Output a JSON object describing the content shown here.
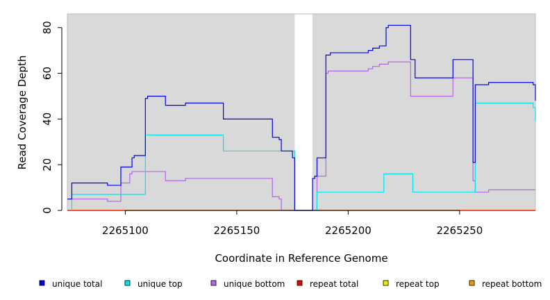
{
  "chart_data": {
    "type": "line",
    "title": "",
    "xlabel": "Coordinate in Reference Genome",
    "ylabel": "Read Coverage Depth",
    "xlim": [
      2265074,
      2265284
    ],
    "ylim": [
      0,
      86
    ],
    "xticks": [
      2265100,
      2265150,
      2265200,
      2265250
    ],
    "yticks": [
      0,
      20,
      40,
      60,
      80
    ],
    "background_color": "#d9d9d9",
    "gap_region": [
      2265176,
      2265184
    ],
    "legend_position": "bottom",
    "series": [
      {
        "name": "unique total",
        "color": "#0000ee",
        "points": [
          [
            2265074,
            5
          ],
          [
            2265076,
            5
          ],
          [
            2265076,
            12
          ],
          [
            2265092,
            12
          ],
          [
            2265092,
            11
          ],
          [
            2265098,
            11
          ],
          [
            2265098,
            19
          ],
          [
            2265103,
            19
          ],
          [
            2265103,
            23
          ],
          [
            2265104,
            23
          ],
          [
            2265104,
            24
          ],
          [
            2265109,
            24
          ],
          [
            2265109,
            49
          ],
          [
            2265110,
            49
          ],
          [
            2265110,
            50
          ],
          [
            2265118,
            50
          ],
          [
            2265118,
            46
          ],
          [
            2265127,
            46
          ],
          [
            2265127,
            47
          ],
          [
            2265144,
            47
          ],
          [
            2265144,
            40
          ],
          [
            2265166,
            40
          ],
          [
            2265166,
            32
          ],
          [
            2265169,
            32
          ],
          [
            2265169,
            31
          ],
          [
            2265170,
            31
          ],
          [
            2265170,
            26
          ],
          [
            2265175,
            26
          ],
          [
            2265175,
            23
          ],
          [
            2265176,
            23
          ],
          [
            2265176,
            0
          ],
          [
            2265184,
            0
          ],
          [
            2265184,
            14
          ],
          [
            2265185,
            14
          ],
          [
            2265185,
            15
          ],
          [
            2265186,
            15
          ],
          [
            2265186,
            23
          ],
          [
            2265190,
            23
          ],
          [
            2265190,
            68
          ],
          [
            2265192,
            68
          ],
          [
            2265192,
            69
          ],
          [
            2265209,
            69
          ],
          [
            2265209,
            70
          ],
          [
            2265211,
            70
          ],
          [
            2265211,
            71
          ],
          [
            2265214,
            71
          ],
          [
            2265214,
            72
          ],
          [
            2265217,
            72
          ],
          [
            2265217,
            80
          ],
          [
            2265218,
            80
          ],
          [
            2265218,
            81
          ],
          [
            2265228,
            81
          ],
          [
            2265228,
            66
          ],
          [
            2265230,
            66
          ],
          [
            2265230,
            58
          ],
          [
            2265247,
            58
          ],
          [
            2265247,
            66
          ],
          [
            2265256,
            66
          ],
          [
            2265256,
            21
          ],
          [
            2265257,
            21
          ],
          [
            2265257,
            55
          ],
          [
            2265263,
            55
          ],
          [
            2265263,
            56
          ],
          [
            2265283,
            56
          ],
          [
            2265283,
            55
          ],
          [
            2265284,
            55
          ],
          [
            2265284,
            48
          ]
        ]
      },
      {
        "name": "unique top",
        "color": "#00e5ee",
        "points": [
          [
            2265076,
            0
          ],
          [
            2265076,
            7
          ],
          [
            2265109,
            7
          ],
          [
            2265109,
            33
          ],
          [
            2265144,
            33
          ],
          [
            2265144,
            26
          ],
          [
            2265176,
            26
          ],
          [
            2265176,
            0
          ],
          [
            2265186,
            0
          ],
          [
            2265186,
            8
          ],
          [
            2265216,
            8
          ],
          [
            2265216,
            16
          ],
          [
            2265229,
            16
          ],
          [
            2265229,
            8
          ],
          [
            2265257,
            8
          ],
          [
            2265257,
            47
          ],
          [
            2265283,
            47
          ],
          [
            2265283,
            45
          ],
          [
            2265284,
            45
          ],
          [
            2265284,
            39
          ]
        ]
      },
      {
        "name": "unique bottom",
        "color": "#b266e8",
        "points": [
          [
            2265074,
            5
          ],
          [
            2265092,
            5
          ],
          [
            2265092,
            4
          ],
          [
            2265098,
            4
          ],
          [
            2265098,
            12
          ],
          [
            2265102,
            12
          ],
          [
            2265102,
            16
          ],
          [
            2265103,
            16
          ],
          [
            2265103,
            17
          ],
          [
            2265118,
            17
          ],
          [
            2265118,
            13
          ],
          [
            2265127,
            13
          ],
          [
            2265127,
            14
          ],
          [
            2265166,
            14
          ],
          [
            2265166,
            6
          ],
          [
            2265169,
            6
          ],
          [
            2265169,
            5
          ],
          [
            2265170,
            5
          ],
          [
            2265170,
            0
          ],
          [
            2265176,
            0
          ],
          [
            2265186,
            0
          ],
          [
            2265186,
            15
          ],
          [
            2265190,
            15
          ],
          [
            2265190,
            60
          ],
          [
            2265191,
            60
          ],
          [
            2265191,
            61
          ],
          [
            2265209,
            61
          ],
          [
            2265209,
            62
          ],
          [
            2265211,
            62
          ],
          [
            2265211,
            63
          ],
          [
            2265214,
            63
          ],
          [
            2265214,
            64
          ],
          [
            2265218,
            64
          ],
          [
            2265218,
            65
          ],
          [
            2265228,
            65
          ],
          [
            2265228,
            50
          ],
          [
            2265247,
            50
          ],
          [
            2265247,
            58
          ],
          [
            2265256,
            58
          ],
          [
            2265256,
            13
          ],
          [
            2265257,
            13
          ],
          [
            2265257,
            8
          ],
          [
            2265263,
            8
          ],
          [
            2265263,
            9
          ],
          [
            2265284,
            9
          ]
        ]
      },
      {
        "name": "repeat total",
        "color": "#ee0000",
        "points": [
          [
            2265074,
            0
          ],
          [
            2265284,
            0
          ]
        ]
      },
      {
        "name": "repeat top",
        "color": "#eeee00",
        "points": [
          [
            2265074,
            0
          ],
          [
            2265284,
            0
          ]
        ]
      },
      {
        "name": "repeat bottom",
        "color": "#ee9a00",
        "points": [
          [
            2265074,
            0
          ],
          [
            2265284,
            0
          ]
        ]
      }
    ]
  }
}
